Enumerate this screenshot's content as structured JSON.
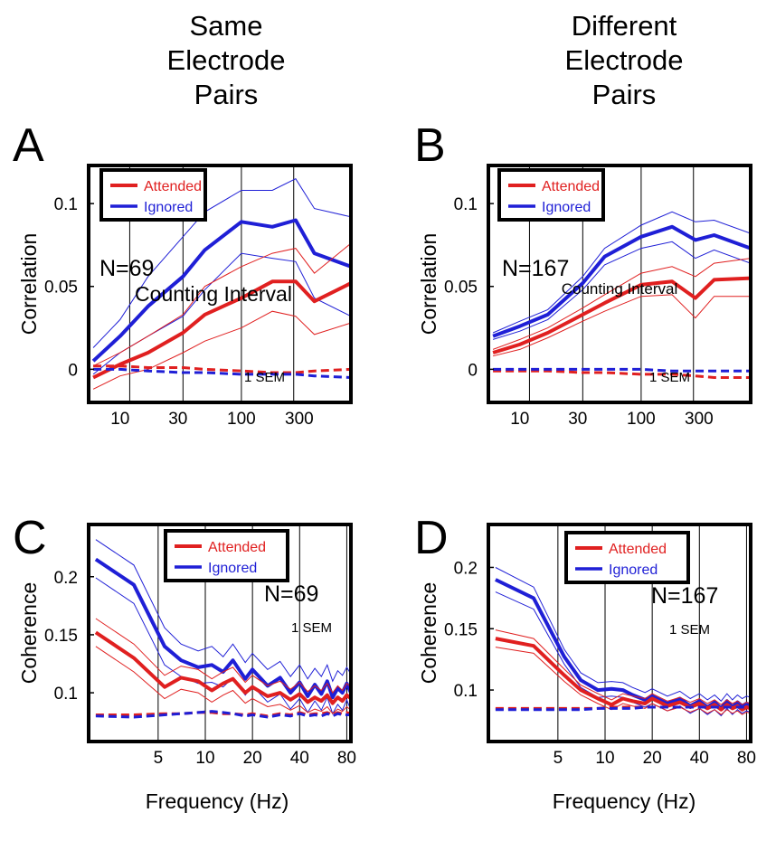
{
  "column_titles": [
    {
      "lines": [
        "Same",
        "Electrode",
        "Pairs"
      ]
    },
    {
      "lines": [
        "Different",
        "Electrode",
        "Pairs"
      ]
    }
  ],
  "colors": {
    "attended": "#e02020",
    "ignored": "#1f1fd6",
    "grid": "#000000",
    "frame": "#000000"
  },
  "chart_data": [
    {
      "panel_letter": "A",
      "type": "line",
      "xscale": "log",
      "xlim": [
        5.5,
        800
      ],
      "ylim": [
        -0.02,
        0.123
      ],
      "xticks": [
        10,
        30,
        100,
        300
      ],
      "xticklabels": [
        "10",
        "30",
        "100",
        "300"
      ],
      "yticks": [
        0,
        0.05,
        0.1
      ],
      "yticklabels": [
        "0",
        "0.05",
        "0.1"
      ],
      "vlines": [
        12,
        33,
        100,
        270
      ],
      "xlabel": "Counting Interval",
      "ylabel": "Correlation",
      "n_label": "N=69",
      "sem_label": "1 SEM",
      "legend": [
        "Attended",
        "Ignored"
      ],
      "x": [
        6,
        10,
        17,
        33,
        50,
        100,
        180,
        280,
        400,
        800
      ],
      "series": [
        {
          "name": "Ignored",
          "values": [
            0.005,
            0.02,
            0.038,
            0.056,
            0.072,
            0.089,
            0.086,
            0.09,
            0.07,
            0.062
          ],
          "upper": [
            0.013,
            0.03,
            0.056,
            0.08,
            0.095,
            0.108,
            0.108,
            0.115,
            0.097,
            0.092
          ],
          "lower": [
            -0.003,
            0.01,
            0.02,
            0.032,
            0.048,
            0.07,
            0.067,
            0.065,
            0.043,
            0.032
          ]
        },
        {
          "name": "Attended",
          "values": [
            -0.005,
            0.003,
            0.01,
            0.022,
            0.033,
            0.043,
            0.053,
            0.053,
            0.041,
            0.052
          ],
          "upper": [
            0.002,
            0.01,
            0.02,
            0.033,
            0.05,
            0.062,
            0.07,
            0.073,
            0.058,
            0.076
          ],
          "lower": [
            -0.012,
            -0.004,
            0.0,
            0.01,
            0.017,
            0.025,
            0.035,
            0.032,
            0.021,
            0.028
          ]
        },
        {
          "name": "Attended",
          "dashed": true,
          "values": [
            0.002,
            0.002,
            0.001,
            0.001,
            0.0,
            -0.001,
            -0.002,
            -0.002,
            -0.001,
            0.0
          ]
        },
        {
          "name": "Ignored",
          "dashed": true,
          "values": [
            0.0,
            0.0,
            -0.001,
            -0.002,
            -0.002,
            -0.003,
            -0.003,
            -0.003,
            -0.004,
            -0.005
          ]
        }
      ]
    },
    {
      "panel_letter": "B",
      "type": "line",
      "xscale": "log",
      "xlim": [
        5.5,
        800
      ],
      "ylim": [
        -0.02,
        0.123
      ],
      "xticks": [
        10,
        30,
        100,
        300
      ],
      "xticklabels": [
        "10",
        "30",
        "100",
        "300"
      ],
      "yticks": [
        0,
        0.05,
        0.1
      ],
      "yticklabels": [
        "0",
        "0.05",
        "0.1"
      ],
      "vlines": [
        12,
        33,
        100,
        270
      ],
      "xlabel": "Counting Interval",
      "ylabel": "Correlation",
      "n_label": "N=167",
      "sem_label": "1 SEM",
      "legend": [
        "Attended",
        "Ignored"
      ],
      "x": [
        6,
        10,
        17,
        33,
        50,
        100,
        180,
        280,
        400,
        800
      ],
      "series": [
        {
          "name": "Ignored",
          "values": [
            0.02,
            0.026,
            0.033,
            0.052,
            0.068,
            0.08,
            0.086,
            0.078,
            0.081,
            0.073
          ],
          "upper": [
            0.022,
            0.029,
            0.036,
            0.056,
            0.073,
            0.087,
            0.095,
            0.089,
            0.09,
            0.082
          ],
          "lower": [
            0.018,
            0.023,
            0.03,
            0.048,
            0.063,
            0.073,
            0.077,
            0.067,
            0.072,
            0.064
          ]
        },
        {
          "name": "Attended",
          "values": [
            0.01,
            0.015,
            0.022,
            0.033,
            0.04,
            0.051,
            0.053,
            0.043,
            0.054,
            0.055
          ],
          "upper": [
            0.012,
            0.018,
            0.025,
            0.037,
            0.045,
            0.058,
            0.062,
            0.056,
            0.064,
            0.067
          ],
          "lower": [
            0.008,
            0.012,
            0.019,
            0.029,
            0.035,
            0.044,
            0.045,
            0.031,
            0.044,
            0.044
          ]
        },
        {
          "name": "Attended",
          "dashed": true,
          "values": [
            -0.001,
            -0.001,
            -0.001,
            -0.002,
            -0.002,
            -0.003,
            -0.003,
            -0.004,
            -0.005,
            -0.005
          ]
        },
        {
          "name": "Ignored",
          "dashed": true,
          "values": [
            0.0,
            0.0,
            0.0,
            0.0,
            0.0,
            0.0,
            -0.001,
            -0.001,
            -0.001,
            -0.001
          ]
        }
      ]
    },
    {
      "panel_letter": "C",
      "type": "line",
      "xscale": "log",
      "xlim": [
        1.8,
        85
      ],
      "ylim": [
        0.058,
        0.245
      ],
      "xticks": [
        5,
        10,
        20,
        40,
        80
      ],
      "xticklabels": [
        "5",
        "10",
        "20",
        "40",
        "80"
      ],
      "yticks": [
        0.1,
        0.15,
        0.2
      ],
      "yticklabels": [
        "0.1",
        "0.15",
        "0.2"
      ],
      "vlines": [
        5,
        10,
        20,
        40,
        80
      ],
      "xlabel": "Frequency (Hz)",
      "ylabel": "Coherence",
      "n_label": "N=69",
      "sem_label": "1 SEM",
      "legend": [
        "Attended",
        "Ignored"
      ],
      "x": [
        2,
        3.5,
        5.5,
        7,
        9,
        11,
        13,
        15,
        18,
        20,
        25,
        30,
        35,
        40,
        45,
        50,
        55,
        60,
        65,
        70,
        75,
        80,
        85
      ],
      "series": [
        {
          "name": "Ignored",
          "values": [
            0.215,
            0.193,
            0.14,
            0.128,
            0.122,
            0.124,
            0.118,
            0.128,
            0.112,
            0.12,
            0.106,
            0.113,
            0.1,
            0.109,
            0.097,
            0.107,
            0.099,
            0.11,
            0.096,
            0.104,
            0.1,
            0.108,
            0.1
          ],
          "upper": [
            0.232,
            0.21,
            0.156,
            0.142,
            0.136,
            0.14,
            0.131,
            0.142,
            0.126,
            0.134,
            0.12,
            0.127,
            0.114,
            0.124,
            0.112,
            0.121,
            0.114,
            0.124,
            0.11,
            0.119,
            0.115,
            0.122,
            0.116
          ],
          "lower": [
            0.199,
            0.177,
            0.124,
            0.114,
            0.108,
            0.109,
            0.105,
            0.113,
            0.098,
            0.106,
            0.092,
            0.099,
            0.086,
            0.095,
            0.083,
            0.093,
            0.085,
            0.096,
            0.082,
            0.09,
            0.085,
            0.094,
            0.085
          ]
        },
        {
          "name": "Attended",
          "values": [
            0.152,
            0.13,
            0.105,
            0.113,
            0.11,
            0.102,
            0.108,
            0.112,
            0.1,
            0.105,
            0.097,
            0.1,
            0.094,
            0.099,
            0.092,
            0.096,
            0.093,
            0.098,
            0.091,
            0.096,
            0.093,
            0.098,
            0.095
          ],
          "upper": [
            0.164,
            0.142,
            0.115,
            0.123,
            0.12,
            0.112,
            0.118,
            0.122,
            0.109,
            0.115,
            0.106,
            0.11,
            0.103,
            0.109,
            0.101,
            0.106,
            0.102,
            0.108,
            0.1,
            0.106,
            0.102,
            0.108,
            0.105
          ],
          "lower": [
            0.14,
            0.118,
            0.095,
            0.103,
            0.1,
            0.092,
            0.098,
            0.102,
            0.091,
            0.095,
            0.088,
            0.09,
            0.085,
            0.089,
            0.083,
            0.086,
            0.084,
            0.088,
            0.082,
            0.086,
            0.084,
            0.088,
            0.085
          ]
        },
        {
          "name": "Attended",
          "dashed": true,
          "values": [
            0.081,
            0.081,
            0.082,
            0.082,
            0.083,
            0.083,
            0.082,
            0.082,
            0.081,
            0.082,
            0.08,
            0.082,
            0.081,
            0.083,
            0.081,
            0.082,
            0.082,
            0.083,
            0.081,
            0.083,
            0.082,
            0.083,
            0.082
          ]
        },
        {
          "name": "Ignored",
          "dashed": true,
          "values": [
            0.08,
            0.079,
            0.081,
            0.082,
            0.083,
            0.084,
            0.083,
            0.082,
            0.08,
            0.081,
            0.079,
            0.081,
            0.08,
            0.082,
            0.08,
            0.081,
            0.08,
            0.082,
            0.08,
            0.082,
            0.081,
            0.081,
            0.081
          ]
        }
      ]
    },
    {
      "panel_letter": "D",
      "type": "line",
      "xscale": "log",
      "xlim": [
        1.8,
        85
      ],
      "ylim": [
        0.058,
        0.235
      ],
      "xticks": [
        5,
        10,
        20,
        40,
        80
      ],
      "xticklabels": [
        "5",
        "10",
        "20",
        "40",
        "80"
      ],
      "yticks": [
        0.1,
        0.15,
        0.2
      ],
      "yticklabels": [
        "0.1",
        "0.15",
        "0.2"
      ],
      "vlines": [
        5,
        10,
        20,
        40,
        80
      ],
      "xlabel": "Frequency (Hz)",
      "ylabel": "Coherence",
      "n_label": "N=167",
      "sem_label": "1 SEM",
      "legend": [
        "Attended",
        "Ignored"
      ],
      "x": [
        2,
        3.5,
        5.5,
        7,
        9,
        11,
        13,
        15,
        18,
        20,
        25,
        30,
        35,
        40,
        45,
        50,
        55,
        60,
        65,
        70,
        75,
        80,
        85
      ],
      "series": [
        {
          "name": "Ignored",
          "values": [
            0.19,
            0.175,
            0.127,
            0.108,
            0.1,
            0.101,
            0.1,
            0.096,
            0.092,
            0.095,
            0.089,
            0.093,
            0.087,
            0.091,
            0.086,
            0.09,
            0.085,
            0.091,
            0.086,
            0.09,
            0.087,
            0.089,
            0.088
          ],
          "upper": [
            0.2,
            0.184,
            0.133,
            0.114,
            0.106,
            0.107,
            0.106,
            0.102,
            0.098,
            0.101,
            0.095,
            0.099,
            0.093,
            0.097,
            0.092,
            0.096,
            0.091,
            0.097,
            0.092,
            0.096,
            0.093,
            0.095,
            0.094
          ],
          "lower": [
            0.18,
            0.166,
            0.121,
            0.102,
            0.094,
            0.095,
            0.094,
            0.09,
            0.086,
            0.089,
            0.083,
            0.087,
            0.081,
            0.085,
            0.08,
            0.084,
            0.079,
            0.085,
            0.08,
            0.084,
            0.081,
            0.083,
            0.082
          ]
        },
        {
          "name": "Attended",
          "values": [
            0.142,
            0.136,
            0.112,
            0.1,
            0.093,
            0.088,
            0.093,
            0.091,
            0.089,
            0.093,
            0.087,
            0.09,
            0.086,
            0.089,
            0.085,
            0.088,
            0.084,
            0.088,
            0.085,
            0.087,
            0.084,
            0.086,
            0.085
          ],
          "upper": [
            0.149,
            0.142,
            0.117,
            0.104,
            0.097,
            0.092,
            0.097,
            0.095,
            0.093,
            0.097,
            0.091,
            0.094,
            0.09,
            0.093,
            0.089,
            0.092,
            0.088,
            0.092,
            0.089,
            0.091,
            0.088,
            0.09,
            0.089
          ],
          "lower": [
            0.135,
            0.13,
            0.107,
            0.096,
            0.089,
            0.084,
            0.089,
            0.087,
            0.085,
            0.089,
            0.083,
            0.086,
            0.082,
            0.085,
            0.081,
            0.084,
            0.08,
            0.084,
            0.081,
            0.083,
            0.08,
            0.082,
            0.081
          ]
        },
        {
          "name": "Attended",
          "dashed": true,
          "values": [
            0.085,
            0.085,
            0.085,
            0.085,
            0.085,
            0.086,
            0.086,
            0.086,
            0.086,
            0.086,
            0.086,
            0.086,
            0.086,
            0.086,
            0.086,
            0.086,
            0.086,
            0.086,
            0.086,
            0.086,
            0.086,
            0.086,
            0.086
          ]
        },
        {
          "name": "Ignored",
          "dashed": true,
          "values": [
            0.084,
            0.084,
            0.084,
            0.084,
            0.085,
            0.085,
            0.085,
            0.085,
            0.086,
            0.086,
            0.086,
            0.086,
            0.086,
            0.086,
            0.086,
            0.086,
            0.086,
            0.086,
            0.086,
            0.086,
            0.086,
            0.086,
            0.086
          ]
        }
      ]
    }
  ]
}
